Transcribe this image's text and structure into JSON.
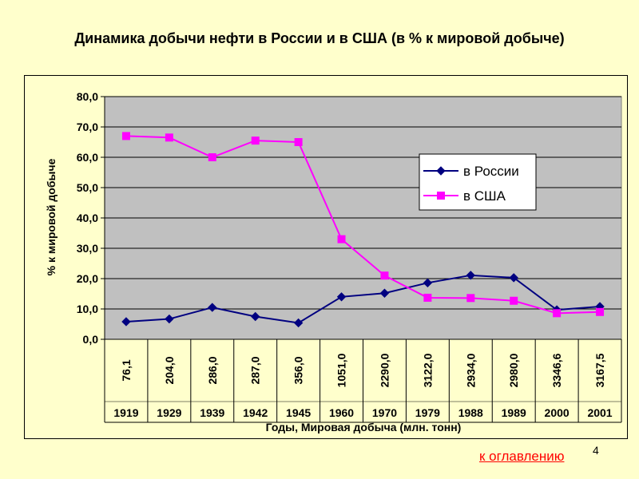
{
  "page": {
    "title": "Динамика добычи нефти в России и в США (в % к мировой добыче)",
    "toc_link": "к оглавлению",
    "page_number": "4"
  },
  "colors": {
    "russia": "#000080",
    "usa": "#FF00FF",
    "plot_bg": "#C0C0C0"
  },
  "chart_data": {
    "type": "line",
    "title": "Динамика добычи нефти в России и в США (в % к мировой добыче)",
    "xlabel": "Годы, Мировая добыча (млн. тонн)",
    "ylabel": "% к мировой добыче",
    "ylim": [
      0,
      80
    ],
    "yticks": [
      "0,0",
      "10,0",
      "20,0",
      "30,0",
      "40,0",
      "50,0",
      "60,0",
      "70,0",
      "80,0"
    ],
    "categories": [
      "1919",
      "1929",
      "1939",
      "1942",
      "1945",
      "1960",
      "1970",
      "1979",
      "1988",
      "1989",
      "2000",
      "2001"
    ],
    "world_production": [
      "76,1",
      "204,0",
      "286,0",
      "287,0",
      "356,0",
      "1051,0",
      "2290,0",
      "3122,0",
      "2934,0",
      "2980,0",
      "3346,6",
      "3167,5"
    ],
    "grid": true,
    "legend_position": "right",
    "series": [
      {
        "name": "в России",
        "marker": "diamond",
        "values": [
          5.8,
          6.7,
          10.5,
          7.5,
          5.4,
          14.0,
          15.2,
          18.6,
          21.1,
          20.3,
          9.7,
          10.8
        ]
      },
      {
        "name": "в США",
        "marker": "square",
        "values": [
          67.0,
          66.5,
          60.0,
          65.5,
          65.0,
          33.0,
          21.0,
          13.7,
          13.6,
          12.7,
          8.6,
          9.0
        ]
      }
    ]
  }
}
